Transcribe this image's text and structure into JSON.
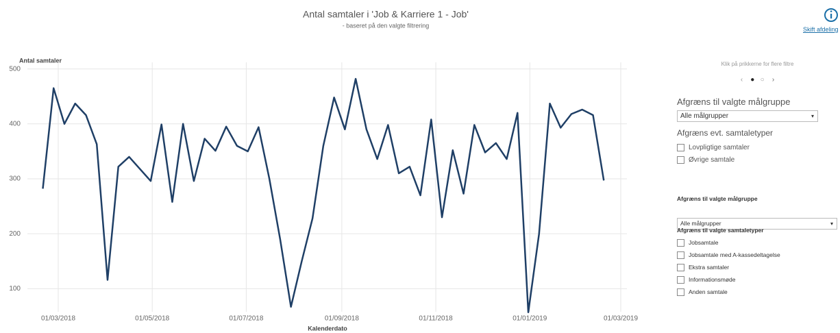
{
  "header": {
    "title": "Antal samtaler i 'Job & Karriere 1 - Job'",
    "subtitle": "- baseret på den valgte filtrering",
    "link": "Skift afdeling"
  },
  "chart_data": {
    "type": "line",
    "y_label": "Antal samtaler",
    "x_label": "Kalenderdato",
    "color": "#1f3f66",
    "grid": true,
    "x": [
      "2018-02-19",
      "2018-02-26",
      "2018-03-05",
      "2018-03-12",
      "2018-03-19",
      "2018-03-26",
      "2018-04-02",
      "2018-04-09",
      "2018-04-16",
      "2018-04-23",
      "2018-04-30",
      "2018-05-07",
      "2018-05-14",
      "2018-05-21",
      "2018-05-28",
      "2018-06-04",
      "2018-06-11",
      "2018-06-18",
      "2018-06-25",
      "2018-07-02",
      "2018-07-09",
      "2018-07-16",
      "2018-07-23",
      "2018-07-30",
      "2018-08-06",
      "2018-08-13",
      "2018-08-20",
      "2018-08-27",
      "2018-09-03",
      "2018-09-10",
      "2018-09-17",
      "2018-09-24",
      "2018-10-01",
      "2018-10-08",
      "2018-10-15",
      "2018-10-22",
      "2018-10-29",
      "2018-11-05",
      "2018-11-12",
      "2018-11-19",
      "2018-11-26",
      "2018-12-03",
      "2018-12-10",
      "2018-12-17",
      "2018-12-24",
      "2018-12-31",
      "2019-01-07",
      "2019-01-14",
      "2019-01-21",
      "2019-01-28",
      "2019-02-04",
      "2019-02-11",
      "2019-02-18"
    ],
    "values": [
      282,
      465,
      400,
      437,
      416,
      363,
      116,
      322,
      340,
      318,
      296,
      399,
      258,
      400,
      296,
      373,
      351,
      395,
      360,
      350,
      394,
      300,
      190,
      67,
      150,
      228,
      360,
      448,
      390,
      482,
      390,
      336,
      398,
      310,
      322,
      270,
      408,
      230,
      352,
      273,
      398,
      348,
      365,
      336,
      420,
      57,
      200,
      437,
      393,
      418,
      426,
      416,
      297
    ],
    "xlim": [
      "2018-02-09",
      "2019-03-05"
    ],
    "xticks": [
      {
        "value": "2018-03-01",
        "label": "01/03/2018"
      },
      {
        "value": "2018-05-01",
        "label": "01/05/2018"
      },
      {
        "value": "2018-07-01",
        "label": "01/07/2018"
      },
      {
        "value": "2018-09-01",
        "label": "01/09/2018"
      },
      {
        "value": "2018-11-01",
        "label": "01/11/2018"
      },
      {
        "value": "2019-01-01",
        "label": "01/01/2019"
      },
      {
        "value": "2019-03-01",
        "label": "01/03/2019"
      }
    ],
    "ylim": [
      58,
      512
    ],
    "yticks": [
      100,
      200,
      300,
      400,
      500
    ]
  },
  "filters": {
    "hint": "Klik på prikkerne for flere filtre",
    "group1_title": "Afgræns til valgte målgruppe",
    "group1_select": "Alle målgrupper",
    "types1_title": "Afgræns evt. samtaletyper",
    "types1": [
      "Lovpligtige samtaler",
      "Øvrige samtale"
    ],
    "group2_title": "Afgræns til valgte målgruppe",
    "group2_select": "Alle målgrupper",
    "types2_title": "Afgræns til valgte samtaletyper",
    "types2": [
      "Jobsamtale",
      "Jobsamtale med A-kassedeltagelse",
      "Ekstra samtaler",
      "Informationsmøde",
      "Anden samtale"
    ]
  }
}
